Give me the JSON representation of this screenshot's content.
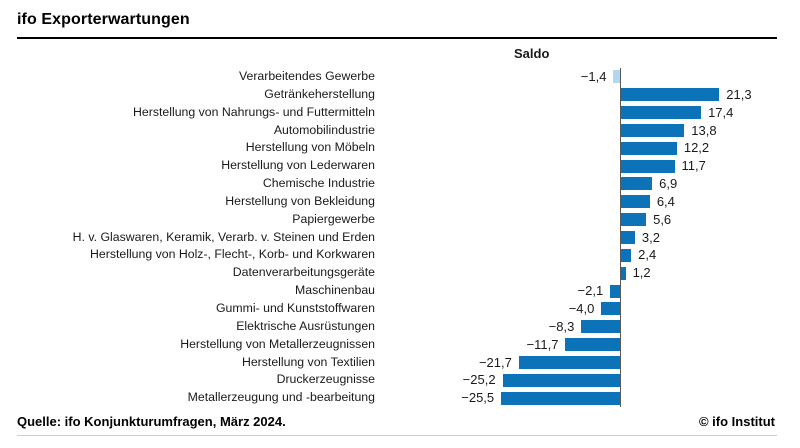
{
  "header": {
    "title": "ifo Exporterwartungen"
  },
  "chart_data": {
    "type": "bar",
    "orientation": "horizontal",
    "axis_header": "Saldo",
    "categories": [
      "Verarbeitendes Gewerbe",
      "Getränkeherstellung",
      "Herstellung von Nahrungs- und Futtermitteln",
      "Automobilindustrie",
      "Herstellung von Möbeln",
      "Herstellung von Lederwaren",
      "Chemische Industrie",
      "Herstellung von Bekleidung",
      "Papiergewerbe",
      "H. v. Glaswaren, Keramik, Verarb. v. Steinen und Erden",
      "Herstellung von Holz-, Flecht-, Korb- und Korkwaren",
      "Datenverarbeitungsgeräte",
      "Maschinenbau",
      "Gummi- und Kunststoffwaren",
      "Elektrische Ausrüstungen",
      "Herstellung von Metallerzeugnissen",
      "Herstellung von Textilien",
      "Druckerzeugnisse",
      "Metallerzeugung und -bearbeitung"
    ],
    "values": [
      -1.4,
      21.3,
      17.4,
      13.8,
      12.2,
      11.7,
      6.9,
      6.4,
      5.6,
      3.2,
      2.4,
      1.2,
      -2.1,
      -4.0,
      -8.3,
      -11.7,
      -21.7,
      -25.2,
      -25.5
    ],
    "value_labels": [
      "−1,4",
      "21,3",
      "17,4",
      "13,8",
      "12,2",
      "11,7",
      "6,9",
      "6,4",
      "5,6",
      "3,2",
      "2,4",
      "1,2",
      "−2,1",
      "−4,0",
      "−8,3",
      "−11,7",
      "−21,7",
      "−25,2",
      "−25,5"
    ],
    "bar_color": "#0d73b8",
    "highlight_bar_color": "#b3d7ee",
    "highlight_index": 0,
    "xlim": [
      -27,
      23
    ],
    "grid": false,
    "legend": "none"
  },
  "footer": {
    "source": "Quelle: ifo Konjunkturumfragen, März 2024.",
    "copyright": "© ifo Institut"
  }
}
